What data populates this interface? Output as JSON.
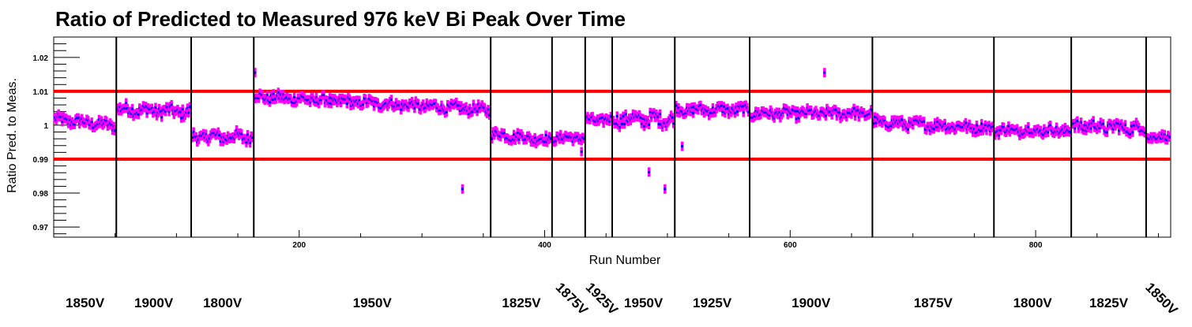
{
  "chart_data": {
    "type": "scatter",
    "title": "Ratio of Predicted to Measured 976 keV Bi Peak Over Time",
    "xlabel": "Run Number",
    "ylabel": "Ratio Pred. to Meas.",
    "xlim": [
      0,
      910
    ],
    "ylim": [
      0.967,
      1.026
    ],
    "x_ticks": [
      200,
      400,
      600,
      800
    ],
    "y_ticks": [
      0.97,
      0.98,
      0.99,
      1,
      1.01,
      1.02
    ],
    "grid": false,
    "error_bars": true,
    "reference_lines": [
      0.99,
      1.01
    ],
    "reference_line_color": "#ff0000",
    "marker_color": "#0000ff",
    "error_bar_color": "#ff00ff",
    "boundaries": [
      51,
      112,
      163,
      356,
      406,
      433,
      455,
      506,
      567,
      667,
      766,
      829,
      890
    ],
    "segments": [
      {
        "label": "1850V",
        "x_start": 0,
        "x_end": 51,
        "mean": 1.0008,
        "amp": 0.0012,
        "slope": -0.002
      },
      {
        "label": "1900V",
        "x_start": 51,
        "x_end": 112,
        "mean": 1.0043,
        "amp": 0.0015,
        "slope": -0.001
      },
      {
        "label": "1800V",
        "x_start": 112,
        "x_end": 163,
        "mean": 0.9966,
        "amp": 0.0015,
        "slope": 0.0
      },
      {
        "label": "1950V",
        "x_start": 163,
        "x_end": 356,
        "mean": 1.0065,
        "amp": 0.0012,
        "slope": -0.004
      },
      {
        "label": "1825V",
        "x_start": 356,
        "x_end": 406,
        "mean": 0.9965,
        "amp": 0.0012,
        "slope": -0.002
      },
      {
        "label": "1875V",
        "x_start": 406,
        "x_end": 433,
        "mean": 0.9963,
        "amp": 0.001,
        "slope": 0.0
      },
      {
        "label": "1925V",
        "x_start": 433,
        "x_end": 455,
        "mean": 1.0015,
        "amp": 0.001,
        "slope": 0.0
      },
      {
        "label": "1950V",
        "x_start": 455,
        "x_end": 506,
        "mean": 1.0018,
        "amp": 0.0018,
        "slope": 0.0
      },
      {
        "label": "1925V",
        "x_start": 506,
        "x_end": 567,
        "mean": 1.0045,
        "amp": 0.0012,
        "slope": 0.0
      },
      {
        "label": "1900V",
        "x_start": 567,
        "x_end": 667,
        "mean": 1.0035,
        "amp": 0.0012,
        "slope": 0.0
      },
      {
        "label": "1875V",
        "x_start": 667,
        "x_end": 766,
        "mean": 1.0,
        "amp": 0.0012,
        "slope": -0.002
      },
      {
        "label": "1800V",
        "x_start": 766,
        "x_end": 829,
        "mean": 0.9985,
        "amp": 0.0012,
        "slope": 0.0
      },
      {
        "label": "1825V",
        "x_start": 829,
        "x_end": 890,
        "mean": 0.9995,
        "amp": 0.0015,
        "slope": -0.001
      },
      {
        "label": "1850V",
        "x_start": 890,
        "x_end": 910,
        "mean": 0.9965,
        "amp": 0.0008,
        "slope": 0.0
      }
    ],
    "outliers": [
      {
        "x": 333,
        "y": 0.9812
      },
      {
        "x": 485,
        "y": 0.9862
      },
      {
        "x": 498,
        "y": 0.9812
      },
      {
        "x": 628,
        "y": 1.0155
      },
      {
        "x": 164,
        "y": 1.0155
      },
      {
        "x": 512,
        "y": 0.9938
      },
      {
        "x": 430,
        "y": 0.9922
      }
    ]
  }
}
